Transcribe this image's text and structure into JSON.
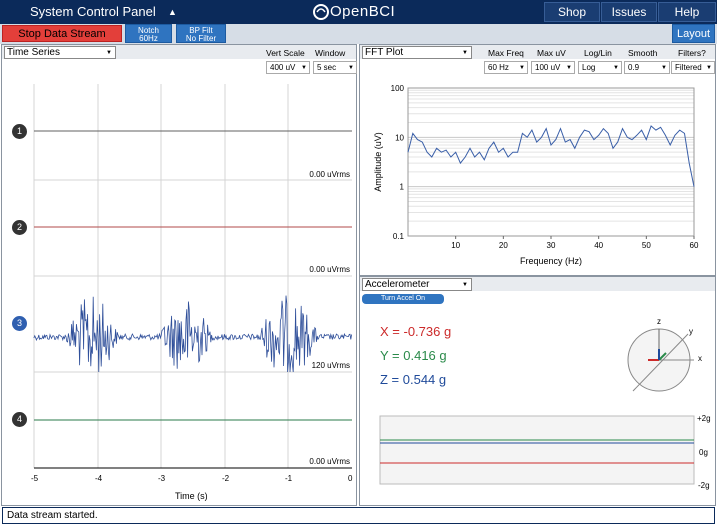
{
  "topbar": {
    "panel_label": "System Control Panel",
    "logo": "OpenBCI",
    "shop": "Shop",
    "issues": "Issues",
    "help": "Help"
  },
  "toolbar": {
    "stop_label": "Stop Data Stream",
    "notch_line1": "Notch",
    "notch_line2": "60Hz",
    "bp_line1": "BP Filt",
    "bp_line2": "No Filter",
    "layout": "Layout"
  },
  "timeseries": {
    "title": "Time Series",
    "vert_scale_label": "Vert Scale",
    "vert_scale_value": "400 uV",
    "window_label": "Window",
    "window_value": "5 sec",
    "channels": [
      {
        "num": "1",
        "rms": "0.00 uVrms",
        "color": "#2a2a2a"
      },
      {
        "num": "2",
        "rms": "0.00 uVrms",
        "color": "#2a2a2a"
      },
      {
        "num": "3",
        "rms": "120 uVrms",
        "color": "#2f5fb0"
      },
      {
        "num": "4",
        "rms": "0.00 uVrms",
        "color": "#2a2a2a"
      }
    ],
    "xticks": [
      "-5",
      "-4",
      "-3",
      "-2",
      "-1",
      "0"
    ],
    "xlabel": "Time (s)"
  },
  "fft": {
    "title": "FFT Plot",
    "controls": [
      {
        "label": "Max Freq",
        "value": "60 Hz"
      },
      {
        "label": "Max uV",
        "value": "100 uV"
      },
      {
        "label": "Log/Lin",
        "value": "Log"
      },
      {
        "label": "Smooth",
        "value": "0.9"
      },
      {
        "label": "Filters?",
        "value": "Filtered"
      }
    ]
  },
  "accel": {
    "title": "Accelerometer",
    "toggle": "Turn Accel On",
    "x_text": "X = -0.736 g",
    "y_text": "Y = 0.416 g",
    "z_text": "Z = 0.544 g",
    "axis_z": "z",
    "axis_y": "y",
    "axis_x": "x",
    "g_plus": "+2g",
    "g_zero": "0g",
    "g_minus": "-2g"
  },
  "status": "Data stream started.",
  "colors": {
    "accent": "#2f74c0",
    "dark": "#0b2a5a",
    "stop": "#e33f3a",
    "x": "#cc2a2a",
    "y": "#2a8a4a",
    "z": "#1f4a9a",
    "signal": "#2f4f9a"
  },
  "chart_data": {
    "type": "line",
    "xlabel": "Frequency (Hz)",
    "ylabel": "Amplitude (uV)",
    "xlim": [
      0,
      60
    ],
    "ylim": [
      0.1,
      100
    ],
    "yscale": "log",
    "xticks": [
      "10",
      "20",
      "30",
      "40",
      "50",
      "60"
    ],
    "yticks": [
      "100",
      "10",
      "1",
      "0.1"
    ],
    "series": [
      {
        "values": [
          [
            0,
            5
          ],
          [
            1,
            12
          ],
          [
            2,
            9
          ],
          [
            3,
            8
          ],
          [
            4,
            5
          ],
          [
            5,
            4
          ],
          [
            6,
            6
          ],
          [
            7,
            5
          ],
          [
            8,
            5.5
          ],
          [
            9,
            4
          ],
          [
            10,
            5
          ],
          [
            11,
            3
          ],
          [
            12,
            4
          ],
          [
            13,
            6
          ],
          [
            14,
            4
          ],
          [
            15,
            5
          ],
          [
            16,
            3.5
          ],
          [
            17,
            6
          ],
          [
            18,
            8
          ],
          [
            19,
            5
          ],
          [
            20,
            6
          ],
          [
            21,
            4
          ],
          [
            22,
            5
          ],
          [
            23,
            5
          ],
          [
            24,
            12
          ],
          [
            25,
            10
          ],
          [
            26,
            14
          ],
          [
            27,
            8
          ],
          [
            28,
            10
          ],
          [
            29,
            15
          ],
          [
            30,
            7
          ],
          [
            31,
            9
          ],
          [
            32,
            15
          ],
          [
            33,
            8
          ],
          [
            34,
            9
          ],
          [
            35,
            6
          ],
          [
            36,
            10
          ],
          [
            37,
            14
          ],
          [
            38,
            13
          ],
          [
            39,
            9
          ],
          [
            40,
            11
          ],
          [
            41,
            15
          ],
          [
            42,
            12
          ],
          [
            43,
            6
          ],
          [
            44,
            8
          ],
          [
            45,
            15
          ],
          [
            46,
            10
          ],
          [
            47,
            9
          ],
          [
            48,
            11
          ],
          [
            49,
            14
          ],
          [
            50,
            9
          ],
          [
            51,
            17
          ],
          [
            52,
            14
          ],
          [
            53,
            16
          ],
          [
            54,
            11
          ],
          [
            55,
            7
          ],
          [
            56,
            11
          ],
          [
            57,
            14
          ],
          [
            58,
            12
          ],
          [
            59,
            3
          ],
          [
            60,
            1
          ]
        ]
      }
    ]
  }
}
